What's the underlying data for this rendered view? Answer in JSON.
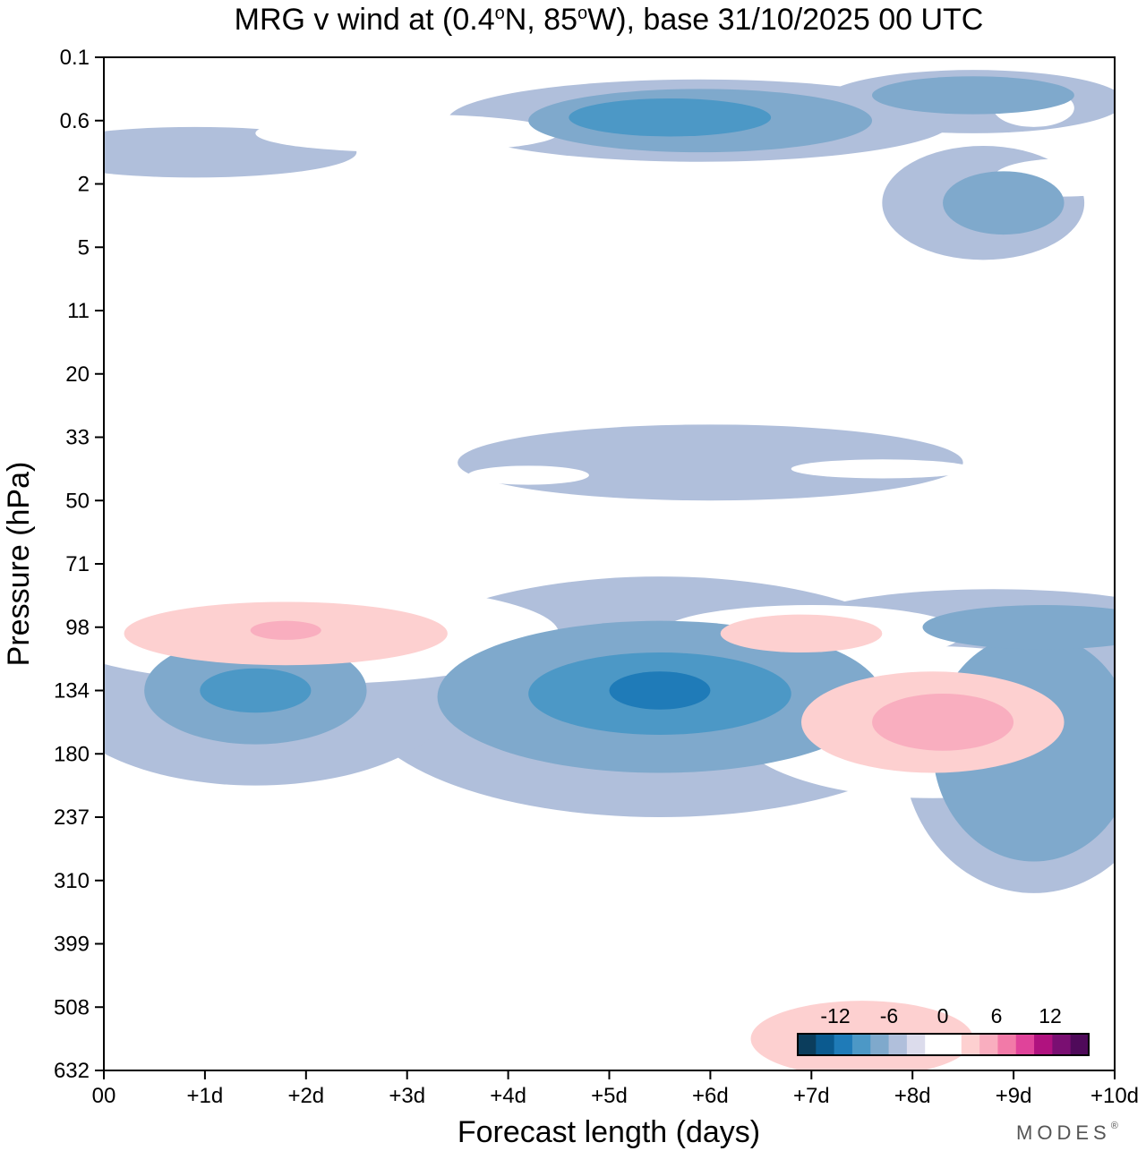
{
  "chart_data": {
    "type": "heatmap",
    "title": "MRG v wind at (0.4°N, 85°W),  base 31/10/2025  00 UTC",
    "title_parts": {
      "prefix": "MRG v wind at (0.4",
      "deg": "o",
      "mid": "N, 85",
      "suffix": "W),  base 31/10/2025  00 UTC"
    },
    "xlabel": "Forecast length (days)",
    "ylabel": "Pressure (hPa)",
    "x_ticks": [
      "00",
      "+1d",
      "+2d",
      "+3d",
      "+4d",
      "+5d",
      "+6d",
      "+7d",
      "+8d",
      "+9d",
      "+10d"
    ],
    "y_ticks": [
      "0.1",
      "0.6",
      "2",
      "5",
      "11",
      "20",
      "33",
      "50",
      "71",
      "98",
      "134",
      "180",
      "237",
      "310",
      "399",
      "508",
      "632"
    ],
    "xlim": [
      0,
      10
    ],
    "colorbar": {
      "tick_labels": [
        "-12",
        "-6",
        "0",
        "6",
        "12"
      ],
      "levels": [
        -15,
        -12,
        -9,
        -6,
        -3,
        0,
        3,
        6,
        9,
        12,
        15
      ],
      "colors": [
        "#0b3d5c",
        "#0b5a8f",
        "#1f7bb8",
        "#4c98c6",
        "#7fa9cc",
        "#b0bfdb",
        "#dcdcec",
        "#ffffff",
        "#ffffff",
        "#fdd0d0",
        "#f9aebf",
        "#f27aa8",
        "#e0439a",
        "#b0127f",
        "#7a0f72",
        "#4f0a5a"
      ]
    },
    "contour_regions": [
      {
        "level": -3,
        "cx": 9.2,
        "cy": 10.9,
        "rx": 1.3,
        "ry": 2.3
      },
      {
        "level": -6,
        "cx": 9.2,
        "cy": 10.9,
        "rx": 1.0,
        "ry": 1.8
      },
      {
        "level": -3,
        "cx": 5.5,
        "cy": 10.1,
        "rx": 3.0,
        "ry": 1.9
      },
      {
        "level": -6,
        "cx": 5.5,
        "cy": 10.1,
        "rx": 2.2,
        "ry": 1.2
      },
      {
        "level": -9,
        "cx": 5.5,
        "cy": 10.05,
        "rx": 1.3,
        "ry": 0.65
      },
      {
        "level": -12,
        "cx": 5.5,
        "cy": 10.0,
        "rx": 0.5,
        "ry": 0.3
      },
      {
        "level": -3,
        "cx": 1.5,
        "cy": 10.0,
        "rx": 2.0,
        "ry": 1.5
      },
      {
        "level": -6,
        "cx": 1.5,
        "cy": 10.0,
        "rx": 1.1,
        "ry": 0.85
      },
      {
        "level": -9,
        "cx": 1.5,
        "cy": 10.0,
        "rx": 0.55,
        "ry": 0.35
      },
      {
        "level": -3,
        "cx": 6.0,
        "cy": 6.4,
        "rx": 2.5,
        "ry": 0.6
      },
      {
        "level": -3,
        "cx": 5.9,
        "cy": 1.0,
        "rx": 2.5,
        "ry": 0.65
      },
      {
        "level": -6,
        "cx": 5.9,
        "cy": 1.0,
        "rx": 1.7,
        "ry": 0.5
      },
      {
        "level": -9,
        "cx": 5.6,
        "cy": 0.95,
        "rx": 1.0,
        "ry": 0.3
      },
      {
        "level": -3,
        "cx": 8.6,
        "cy": 0.7,
        "rx": 1.5,
        "ry": 0.5
      },
      {
        "level": -6,
        "cx": 8.6,
        "cy": 0.6,
        "rx": 1.0,
        "ry": 0.3
      },
      {
        "level": -3,
        "cx": 0.9,
        "cy": 1.5,
        "rx": 1.6,
        "ry": 0.4
      },
      {
        "level": -3,
        "cx": 8.7,
        "cy": 2.3,
        "rx": 1.0,
        "ry": 0.9
      },
      {
        "level": -6,
        "cx": 8.9,
        "cy": 2.3,
        "rx": 0.6,
        "ry": 0.5
      },
      {
        "level": -3,
        "cx": 8.8,
        "cy": 9.0,
        "rx": 2.0,
        "ry": 0.6
      },
      {
        "level": -6,
        "cx": 9.3,
        "cy": 9.0,
        "rx": 1.2,
        "ry": 0.35
      },
      {
        "level": 3,
        "cx": 8.2,
        "cy": 10.5,
        "rx": 2.0,
        "ry": 1.2
      },
      {
        "level": 6,
        "cx": 8.2,
        "cy": 10.5,
        "rx": 1.3,
        "ry": 0.8
      },
      {
        "level": 9,
        "cx": 8.3,
        "cy": 10.5,
        "rx": 0.7,
        "ry": 0.45
      },
      {
        "level": 3,
        "cx": 2.0,
        "cy": 9.1,
        "rx": 2.5,
        "ry": 0.8
      },
      {
        "level": 6,
        "cx": 1.8,
        "cy": 9.1,
        "rx": 1.6,
        "ry": 0.5
      },
      {
        "level": 9,
        "cx": 1.8,
        "cy": 9.05,
        "rx": 0.35,
        "ry": 0.15
      },
      {
        "level": 3,
        "cx": 7.0,
        "cy": 9.1,
        "rx": 1.5,
        "ry": 0.45
      },
      {
        "level": 6,
        "cx": 6.9,
        "cy": 9.1,
        "rx": 0.8,
        "ry": 0.3
      },
      {
        "level": 3,
        "cx": 7.5,
        "cy": 15.5,
        "rx": 1.8,
        "ry": 1.0
      },
      {
        "level": 6,
        "cx": 7.5,
        "cy": 15.5,
        "rx": 1.1,
        "ry": 0.6
      },
      {
        "level": 3,
        "cx": 2.5,
        "cy": 3.2,
        "rx": 0.7,
        "ry": 0.3
      },
      {
        "level": 3,
        "cx": 1.5,
        "cy": 0.6,
        "rx": 1.0,
        "ry": 0.3
      },
      {
        "level": 3,
        "cx": 3.0,
        "cy": 0.5,
        "rx": 0.7,
        "ry": 0.3
      },
      {
        "level": 3,
        "cx": 3.0,
        "cy": 1.2,
        "rx": 1.5,
        "ry": 0.3
      },
      {
        "level": 3,
        "cx": 6.0,
        "cy": 2.0,
        "rx": 0.3,
        "ry": 0.2
      },
      {
        "level": 3,
        "cx": 9.2,
        "cy": 0.8,
        "rx": 0.4,
        "ry": 0.3
      },
      {
        "level": 3,
        "cx": 9.5,
        "cy": 1.9,
        "rx": 0.7,
        "ry": 0.3
      },
      {
        "level": 3,
        "cx": 0.4,
        "cy": 7.3,
        "rx": 0.8,
        "ry": 0.5
      },
      {
        "level": 3,
        "cx": 2.2,
        "cy": 8.0,
        "rx": 1.5,
        "ry": 0.35
      },
      {
        "level": 3,
        "cx": 0.4,
        "cy": 14.8,
        "rx": 0.6,
        "ry": 0.8
      },
      {
        "level": 3,
        "cx": 2.6,
        "cy": 14.5,
        "rx": 0.25,
        "ry": 0.7
      },
      {
        "level": 3,
        "cx": 9.0,
        "cy": 8.1,
        "rx": 2.0,
        "ry": 0.25
      },
      {
        "level": 3,
        "cx": 4.2,
        "cy": 6.6,
        "rx": 0.6,
        "ry": 0.15
      },
      {
        "level": 3,
        "cx": 7.7,
        "cy": 6.5,
        "rx": 0.9,
        "ry": 0.15
      }
    ]
  },
  "branding": {
    "logo": "MODES",
    "mark": "®"
  }
}
